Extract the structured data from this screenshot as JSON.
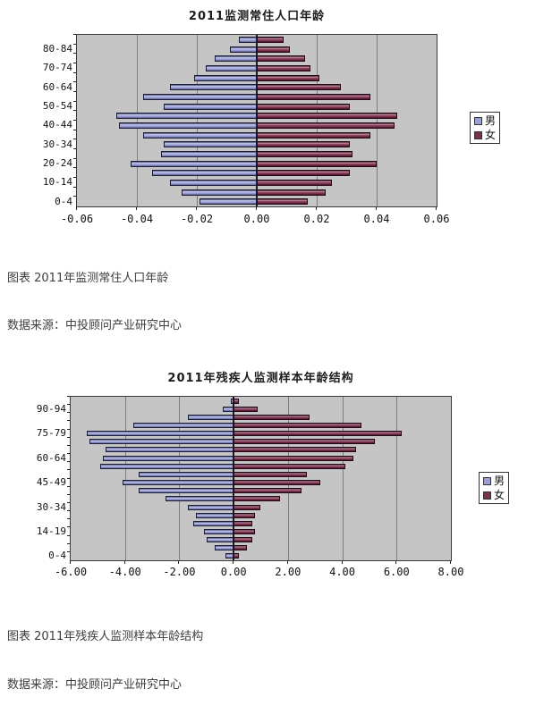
{
  "captions": {
    "chart1_caption": "图表 2011年监测常住人口年龄",
    "chart1_source": "数据来源：中投顾问产业研究中心",
    "chart2_caption": "图表 2011年残疾人监测样本年龄结构",
    "chart2_source": "数据来源：中投顾问产业研究中心"
  },
  "colors": {
    "male_fill": "#9a9ed8",
    "female_fill": "#7a3150",
    "plot_bg": "#c5c5c5",
    "gridline": "#7d7d7d",
    "axis": "#1a1a1a",
    "caption_text": "#3d3d3d"
  },
  "chart_data": [
    {
      "type": "bar",
      "subtype": "population-pyramid",
      "title": "2011监测常住人口年龄",
      "categories": [
        "0-4",
        "5-9",
        "10-14",
        "15-19",
        "20-24",
        "25-29",
        "30-34",
        "35-39",
        "40-44",
        "45-49",
        "50-54",
        "55-59",
        "60-64",
        "65-69",
        "70-74",
        "75-79",
        "80-84",
        "85+"
      ],
      "label_step": 2,
      "series": [
        {
          "name": "男",
          "values": [
            -0.019,
            -0.025,
            -0.029,
            -0.035,
            -0.042,
            -0.032,
            -0.031,
            -0.038,
            -0.046,
            -0.047,
            -0.031,
            -0.038,
            -0.029,
            -0.021,
            -0.017,
            -0.014,
            -0.009,
            -0.006
          ]
        },
        {
          "name": "女",
          "values": [
            0.017,
            0.023,
            0.025,
            0.031,
            0.04,
            0.032,
            0.031,
            0.038,
            0.046,
            0.047,
            0.031,
            0.038,
            0.028,
            0.021,
            0.018,
            0.016,
            0.011,
            0.009
          ]
        }
      ],
      "xlim": [
        -0.06,
        0.06
      ],
      "xticks": [
        "-0.06",
        "-0.04",
        "-0.02",
        "0.00",
        "0.02",
        "0.04",
        "0.06"
      ],
      "grid": true,
      "legend": [
        "男",
        "女"
      ],
      "legend_position": "right"
    },
    {
      "type": "bar",
      "subtype": "population-pyramid",
      "title": "2011年残疾人监测样本年龄结构",
      "categories": [
        "0-4",
        "5-9",
        "10-14",
        "14-19",
        "20-24",
        "25-29",
        "30-34",
        "35-39",
        "40-44",
        "45-49",
        "50-54",
        "55-59",
        "60-64",
        "65-69",
        "70-74",
        "75-79",
        "80-84",
        "85-89",
        "90-94",
        "95+"
      ],
      "label_step": 3,
      "series": [
        {
          "name": "男",
          "values": [
            -0.3,
            -0.7,
            -1.0,
            -1.1,
            -1.5,
            -1.4,
            -1.7,
            -2.5,
            -3.5,
            -4.1,
            -3.5,
            -4.9,
            -4.8,
            -4.7,
            -5.3,
            -5.4,
            -3.7,
            -1.7,
            -0.4,
            -0.1
          ]
        },
        {
          "name": "女",
          "values": [
            0.2,
            0.5,
            0.7,
            0.8,
            0.7,
            0.8,
            1.0,
            1.7,
            2.5,
            3.2,
            2.7,
            4.1,
            4.4,
            4.5,
            5.2,
            6.2,
            4.7,
            2.8,
            0.9,
            0.2
          ]
        }
      ],
      "xlim": [
        -6.0,
        8.0
      ],
      "xticks": [
        "-6.00",
        "-4.00",
        "-2.00",
        "0.00",
        "2.00",
        "4.00",
        "6.00",
        "8.00"
      ],
      "grid": true,
      "legend": [
        "男",
        "女"
      ],
      "legend_position": "right"
    }
  ]
}
